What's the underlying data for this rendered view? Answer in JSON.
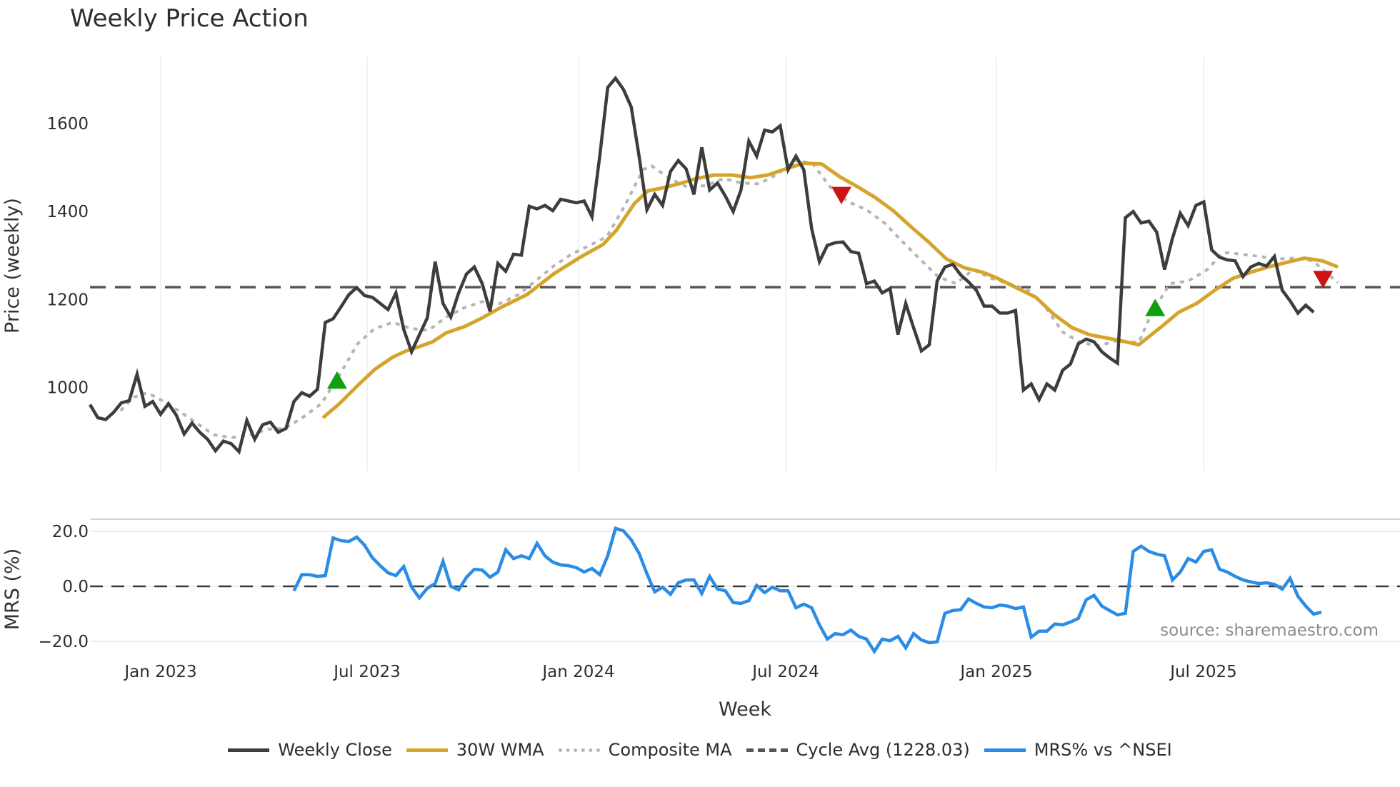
{
  "title": "Weekly Price Action",
  "source_note": "source: sharemaestro.com",
  "axes": {
    "price_ylabel": "Price (weekly)",
    "mrs_ylabel": "MRS (%)",
    "xlabel": "Week",
    "price_yticks": [
      "1000",
      "1200",
      "1400",
      "1600"
    ],
    "mrs_yticks": [
      "−20.0",
      "0.0",
      "20.0"
    ],
    "xticks": [
      "Jan 2023",
      "Jul 2023",
      "Jan 2024",
      "Jul 2024",
      "Jan 2025",
      "Jul 2025"
    ]
  },
  "legend": {
    "weekly_close": "Weekly Close",
    "wma": "30W WMA",
    "composite": "Composite MA",
    "cycle_avg": "Cycle Avg (1228.03)",
    "mrs": "MRS% vs ^NSEI"
  },
  "colors": {
    "weekly_close": "#3d3d3d",
    "wma": "#d4a52a",
    "composite": "#b5b5b5",
    "cycle_avg": "#555555",
    "mrs": "#2b8ce6",
    "buy_marker": "#12a012",
    "sell_marker": "#cc1414"
  },
  "chart_data": [
    {
      "type": "line",
      "title": "Weekly Price Action",
      "xlabel": "Week",
      "ylabel": "Price (weekly)",
      "ylim": [
        810,
        1750
      ],
      "grid": true,
      "legend_position": "bottom",
      "x_tick_labels": [
        "Jan 2023",
        "Jul 2023",
        "Jan 2024",
        "Jul 2024",
        "Jan 2025",
        "Jul 2025"
      ],
      "x_tick_week_index": [
        9,
        42,
        79,
        112,
        146,
        179
      ],
      "cycle_avg": 1228.03,
      "series": [
        {
          "name": "Weekly Close",
          "start_index": 0,
          "values": [
            961,
            931,
            927,
            943,
            965,
            970,
            1030,
            957,
            968,
            939,
            963,
            937,
            894,
            919,
            898,
            882,
            856,
            878,
            872,
            854,
            925,
            882,
            915,
            921,
            898,
            907,
            968,
            988,
            980,
            996,
            1148,
            1156,
            1183,
            1211,
            1227,
            1209,
            1205,
            1191,
            1177,
            1215,
            1132,
            1081,
            1120,
            1158,
            1286,
            1191,
            1160,
            1215,
            1258,
            1274,
            1236,
            1173,
            1282,
            1264,
            1303,
            1301,
            1412,
            1406,
            1414,
            1402,
            1428,
            1424,
            1420,
            1424,
            1388,
            1528,
            1682,
            1703,
            1678,
            1638,
            1526,
            1404,
            1439,
            1414,
            1491,
            1516,
            1497,
            1439,
            1546,
            1449,
            1465,
            1435,
            1400,
            1449,
            1560,
            1526,
            1585,
            1581,
            1595,
            1495,
            1526,
            1495,
            1361,
            1286,
            1323,
            1329,
            1331,
            1309,
            1305,
            1236,
            1242,
            1215,
            1225,
            1120,
            1191,
            1136,
            1083,
            1097,
            1242,
            1274,
            1280,
            1256,
            1240,
            1221,
            1185,
            1185,
            1169,
            1169,
            1175,
            994,
            1008,
            972,
            1008,
            994,
            1039,
            1053,
            1099,
            1110,
            1104,
            1081,
            1067,
            1055,
            1386,
            1400,
            1374,
            1378,
            1353,
            1268,
            1339,
            1396,
            1368,
            1414,
            1422,
            1313,
            1296,
            1290,
            1288,
            1252,
            1274,
            1282,
            1276,
            1298,
            1221,
            1197,
            1169,
            1187,
            1171
          ]
        },
        {
          "name": "30W WMA",
          "points": [
            [
              29.7,
              931
            ],
            [
              31.8,
              963
            ],
            [
              34.1,
              1004
            ],
            [
              36.3,
              1041
            ],
            [
              38.6,
              1069
            ],
            [
              40.3,
              1083
            ],
            [
              42,
              1093
            ],
            [
              43.7,
              1104
            ],
            [
              45.4,
              1124
            ],
            [
              47.7,
              1138
            ],
            [
              50,
              1158
            ],
            [
              52.3,
              1181
            ],
            [
              55.7,
              1211
            ],
            [
              59.1,
              1258
            ],
            [
              62.5,
              1296
            ],
            [
              65.4,
              1325
            ],
            [
              67.1,
              1357
            ],
            [
              69.4,
              1418
            ],
            [
              71.1,
              1447
            ],
            [
              72.8,
              1453
            ],
            [
              75.1,
              1463
            ],
            [
              77.3,
              1475
            ],
            [
              79.6,
              1483
            ],
            [
              81.9,
              1483
            ],
            [
              84.2,
              1477
            ],
            [
              86.4,
              1483
            ],
            [
              88.7,
              1497
            ],
            [
              91,
              1510
            ],
            [
              93.3,
              1508
            ],
            [
              95.6,
              1479
            ],
            [
              97.8,
              1457
            ],
            [
              100.1,
              1432
            ],
            [
              102.4,
              1402
            ],
            [
              104.7,
              1365
            ],
            [
              106.9,
              1331
            ],
            [
              109.2,
              1292
            ],
            [
              111.5,
              1272
            ],
            [
              113.8,
              1262
            ],
            [
              115.5,
              1250
            ],
            [
              118.3,
              1225
            ],
            [
              120.6,
              1205
            ],
            [
              122.9,
              1166
            ],
            [
              125.2,
              1136
            ],
            [
              127.4,
              1120
            ],
            [
              129.7,
              1112
            ],
            [
              132,
              1104
            ],
            [
              133.7,
              1097
            ],
            [
              136.6,
              1138
            ],
            [
              138.8,
              1171
            ],
            [
              141.1,
              1191
            ],
            [
              143.4,
              1221
            ],
            [
              145.7,
              1248
            ],
            [
              148,
              1262
            ],
            [
              150.2,
              1274
            ],
            [
              152.5,
              1284
            ],
            [
              154.8,
              1294
            ],
            [
              157.1,
              1288
            ],
            [
              159.1,
              1274
            ]
          ]
        },
        {
          "name": "Composite MA",
          "points": [
            [
              3.9,
              947
            ],
            [
              5.6,
              978
            ],
            [
              7.3,
              988
            ],
            [
              9,
              972
            ],
            [
              11.3,
              947
            ],
            [
              13.6,
              919
            ],
            [
              15.8,
              892
            ],
            [
              18.1,
              886
            ],
            [
              20.4,
              892
            ],
            [
              22.7,
              905
            ],
            [
              24.9,
              907
            ],
            [
              27.2,
              933
            ],
            [
              29.5,
              963
            ],
            [
              31.8,
              1028
            ],
            [
              34.1,
              1099
            ],
            [
              36.3,
              1134
            ],
            [
              38.6,
              1148
            ],
            [
              40.9,
              1134
            ],
            [
              43.2,
              1130
            ],
            [
              45.4,
              1160
            ],
            [
              47.7,
              1181
            ],
            [
              50,
              1195
            ],
            [
              52.3,
              1191
            ],
            [
              54.6,
              1211
            ],
            [
              56.8,
              1242
            ],
            [
              59.1,
              1276
            ],
            [
              61.4,
              1303
            ],
            [
              63.7,
              1323
            ],
            [
              65.9,
              1343
            ],
            [
              68.2,
              1414
            ],
            [
              70.5,
              1495
            ],
            [
              71.6,
              1504
            ],
            [
              73.9,
              1475
            ],
            [
              76.2,
              1455
            ],
            [
              78.5,
              1459
            ],
            [
              80.8,
              1475
            ],
            [
              83,
              1465
            ],
            [
              85.3,
              1463
            ],
            [
              87.6,
              1485
            ],
            [
              89.9,
              1516
            ],
            [
              92.1,
              1510
            ],
            [
              94.4,
              1455
            ],
            [
              96.7,
              1422
            ],
            [
              99,
              1404
            ],
            [
              101.3,
              1374
            ],
            [
              103.5,
              1333
            ],
            [
              105.8,
              1292
            ],
            [
              108.1,
              1252
            ],
            [
              110.4,
              1236
            ],
            [
              112.6,
              1268
            ],
            [
              114.9,
              1248
            ],
            [
              117.2,
              1236
            ],
            [
              119.5,
              1223
            ],
            [
              121.8,
              1183
            ],
            [
              124,
              1126
            ],
            [
              126.3,
              1102
            ],
            [
              128.6,
              1095
            ],
            [
              130.9,
              1106
            ],
            [
              133.7,
              1102
            ],
            [
              135.4,
              1171
            ],
            [
              137.7,
              1236
            ],
            [
              140,
              1242
            ],
            [
              142.3,
              1266
            ],
            [
              144.5,
              1307
            ],
            [
              146.8,
              1303
            ],
            [
              149.1,
              1298
            ],
            [
              151.4,
              1292
            ],
            [
              153.6,
              1294
            ],
            [
              155.9,
              1288
            ],
            [
              158.2,
              1252
            ],
            [
              159.1,
              1238
            ]
          ]
        },
        {
          "name": "Cycle Avg (1228.03)",
          "values": [
            1228.03
          ]
        }
      ],
      "markers": [
        {
          "type": "buy",
          "shape": "triangle-up",
          "x": 31.5,
          "y": 1014
        },
        {
          "type": "sell",
          "shape": "triangle-down",
          "x": 95.8,
          "y": 1439
        },
        {
          "type": "buy",
          "shape": "triangle-up",
          "x": 135.8,
          "y": 1179
        },
        {
          "type": "sell",
          "shape": "triangle-down",
          "x": 157.2,
          "y": 1248
        }
      ]
    },
    {
      "type": "line",
      "title": "",
      "xlabel": "Week",
      "ylabel": "MRS (%)",
      "ylim": [
        -29,
        26
      ],
      "grid": true,
      "series": [
        {
          "name": "MRS% vs ^NSEI",
          "start_index": 26,
          "values": [
            -1.6,
            4.2,
            4.2,
            3.6,
            3.9,
            17.6,
            16.6,
            16.3,
            17.9,
            15.0,
            10.4,
            7.5,
            4.9,
            3.9,
            7.2,
            -0.3,
            -4.2,
            -0.7,
            1.0,
            9.1,
            0.0,
            -1.3,
            3.3,
            6.2,
            5.9,
            3.3,
            5.2,
            13.3,
            10.1,
            11.1,
            10.1,
            15.6,
            11.1,
            8.8,
            7.8,
            7.5,
            6.8,
            5.2,
            6.5,
            4.2,
            11.1,
            21.1,
            20.2,
            16.9,
            12.0,
            4.6,
            -2.0,
            -0.3,
            -2.9,
            1.3,
            2.3,
            2.3,
            -2.6,
            3.6,
            -1.0,
            -1.6,
            -5.9,
            -6.2,
            -5.2,
            0.3,
            -2.3,
            -0.3,
            -1.6,
            -1.6,
            -7.8,
            -6.5,
            -7.8,
            -14.0,
            -19.2,
            -17.2,
            -17.6,
            -15.9,
            -18.2,
            -19.2,
            -23.7,
            -19.2,
            -19.8,
            -18.2,
            -22.4,
            -17.2,
            -19.5,
            -20.5,
            -20.2,
            -9.8,
            -8.8,
            -8.5,
            -4.6,
            -6.2,
            -7.5,
            -7.8,
            -6.8,
            -7.2,
            -8.1,
            -7.5,
            -18.5,
            -16.3,
            -16.3,
            -13.7,
            -14.0,
            -13.0,
            -11.7,
            -4.9,
            -3.3,
            -7.2,
            -8.8,
            -10.4,
            -9.8,
            12.7,
            14.6,
            12.7,
            11.7,
            11.1,
            2.3,
            5.2,
            10.1,
            8.8,
            12.7,
            13.3,
            6.2,
            5.2,
            3.6,
            2.3,
            1.6,
            1.0,
            1.3,
            0.7,
            -1.0,
            2.9,
            -3.6,
            -7.2,
            -10.1,
            -9.4
          ]
        }
      ],
      "reference_line": 0.0
    }
  ]
}
